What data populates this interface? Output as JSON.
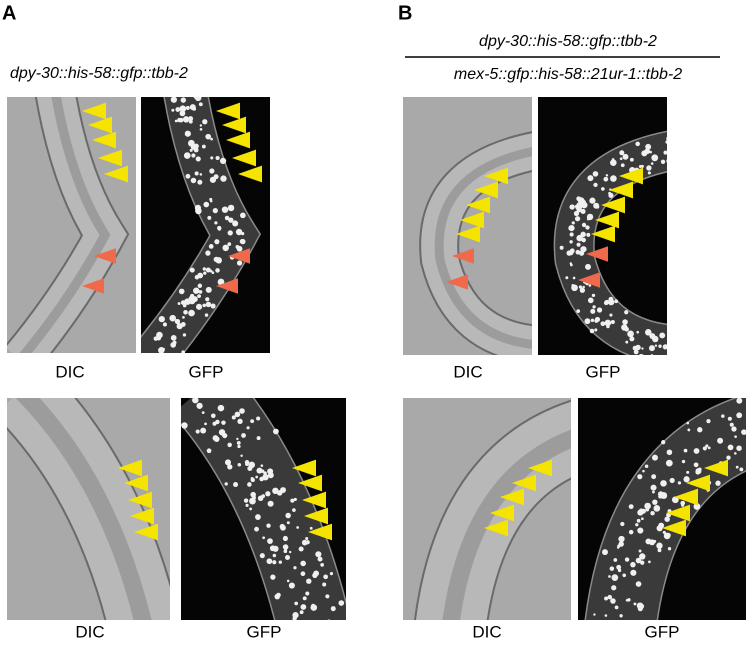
{
  "panels": [
    {
      "label": "A",
      "titles": [
        "dpy-30::his-58::gfp::tbb-2"
      ],
      "rows": [
        [
          "DIC",
          "GFP"
        ],
        [
          "DIC",
          "GFP"
        ]
      ]
    },
    {
      "label": "B",
      "titles": [
        "dpy-30::his-58::gfp::tbb-2",
        "mex-5::gfp::his-58::21ur-1::tbb-2"
      ],
      "rows": [
        [
          "DIC",
          "GFP"
        ],
        [
          "DIC",
          "GFP"
        ]
      ]
    }
  ]
}
